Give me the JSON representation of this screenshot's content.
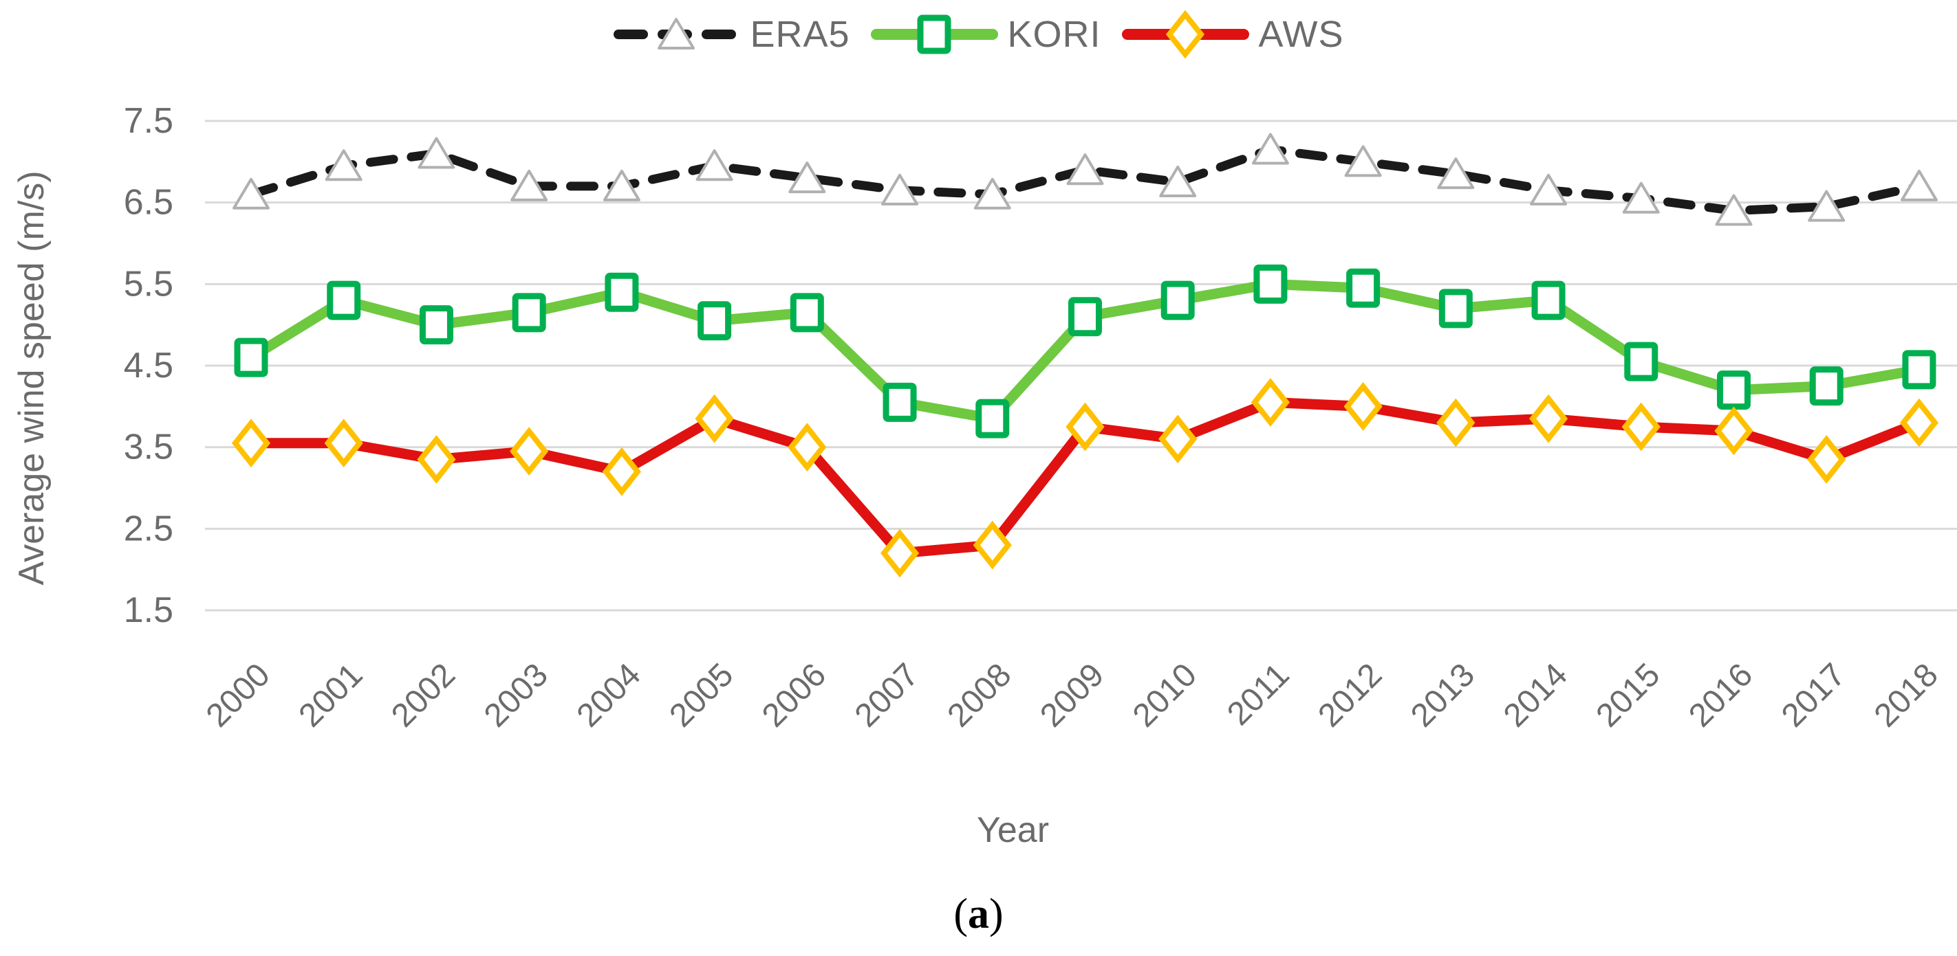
{
  "figure": {
    "caption_letter": "a",
    "background": "#ffffff",
    "text_color": "#6b6b6b"
  },
  "chart_data": {
    "type": "line",
    "title": "",
    "xlabel": "Year",
    "ylabel": "Average wind speed (m/s)",
    "categories": [
      2000,
      2001,
      2002,
      2003,
      2004,
      2005,
      2006,
      2007,
      2008,
      2009,
      2010,
      2011,
      2012,
      2013,
      2014,
      2015,
      2016,
      2017,
      2018
    ],
    "y_ticks": [
      7.5,
      6.5,
      5.5,
      4.5,
      3.5,
      2.5,
      1.5
    ],
    "ylim": [
      1.5,
      7.5
    ],
    "grid": "horizontal",
    "grid_color": "#d9d9d9",
    "legend_position": "top-center",
    "series": [
      {
        "name": "ERA5",
        "marker": "triangle",
        "line_style": "dashed",
        "line_color": "#1a1a1a",
        "marker_stroke": "#b0b0b0",
        "marker_fill": "#ffffff",
        "values": [
          6.6,
          6.95,
          7.1,
          6.7,
          6.7,
          6.95,
          6.8,
          6.65,
          6.6,
          6.9,
          6.75,
          7.15,
          7.0,
          6.85,
          6.65,
          6.55,
          6.4,
          6.45,
          6.7
        ]
      },
      {
        "name": "KORI",
        "marker": "square",
        "line_style": "solid",
        "line_color": "#6ec840",
        "marker_stroke": "#00b050",
        "marker_fill": "#ffffff",
        "values": [
          4.6,
          5.3,
          5.0,
          5.15,
          5.4,
          5.05,
          5.15,
          4.05,
          3.85,
          5.1,
          5.3,
          5.5,
          5.45,
          5.2,
          5.3,
          4.55,
          4.2,
          4.25,
          4.45
        ]
      },
      {
        "name": "AWS",
        "marker": "diamond",
        "line_style": "solid",
        "line_color": "#e01111",
        "marker_stroke": "#ffc000",
        "marker_fill": "#ffffff",
        "values": [
          3.55,
          3.55,
          3.35,
          3.45,
          3.2,
          3.85,
          3.5,
          2.2,
          2.3,
          3.75,
          3.6,
          4.05,
          4.0,
          3.8,
          3.85,
          3.75,
          3.7,
          3.35,
          3.8
        ]
      }
    ]
  }
}
